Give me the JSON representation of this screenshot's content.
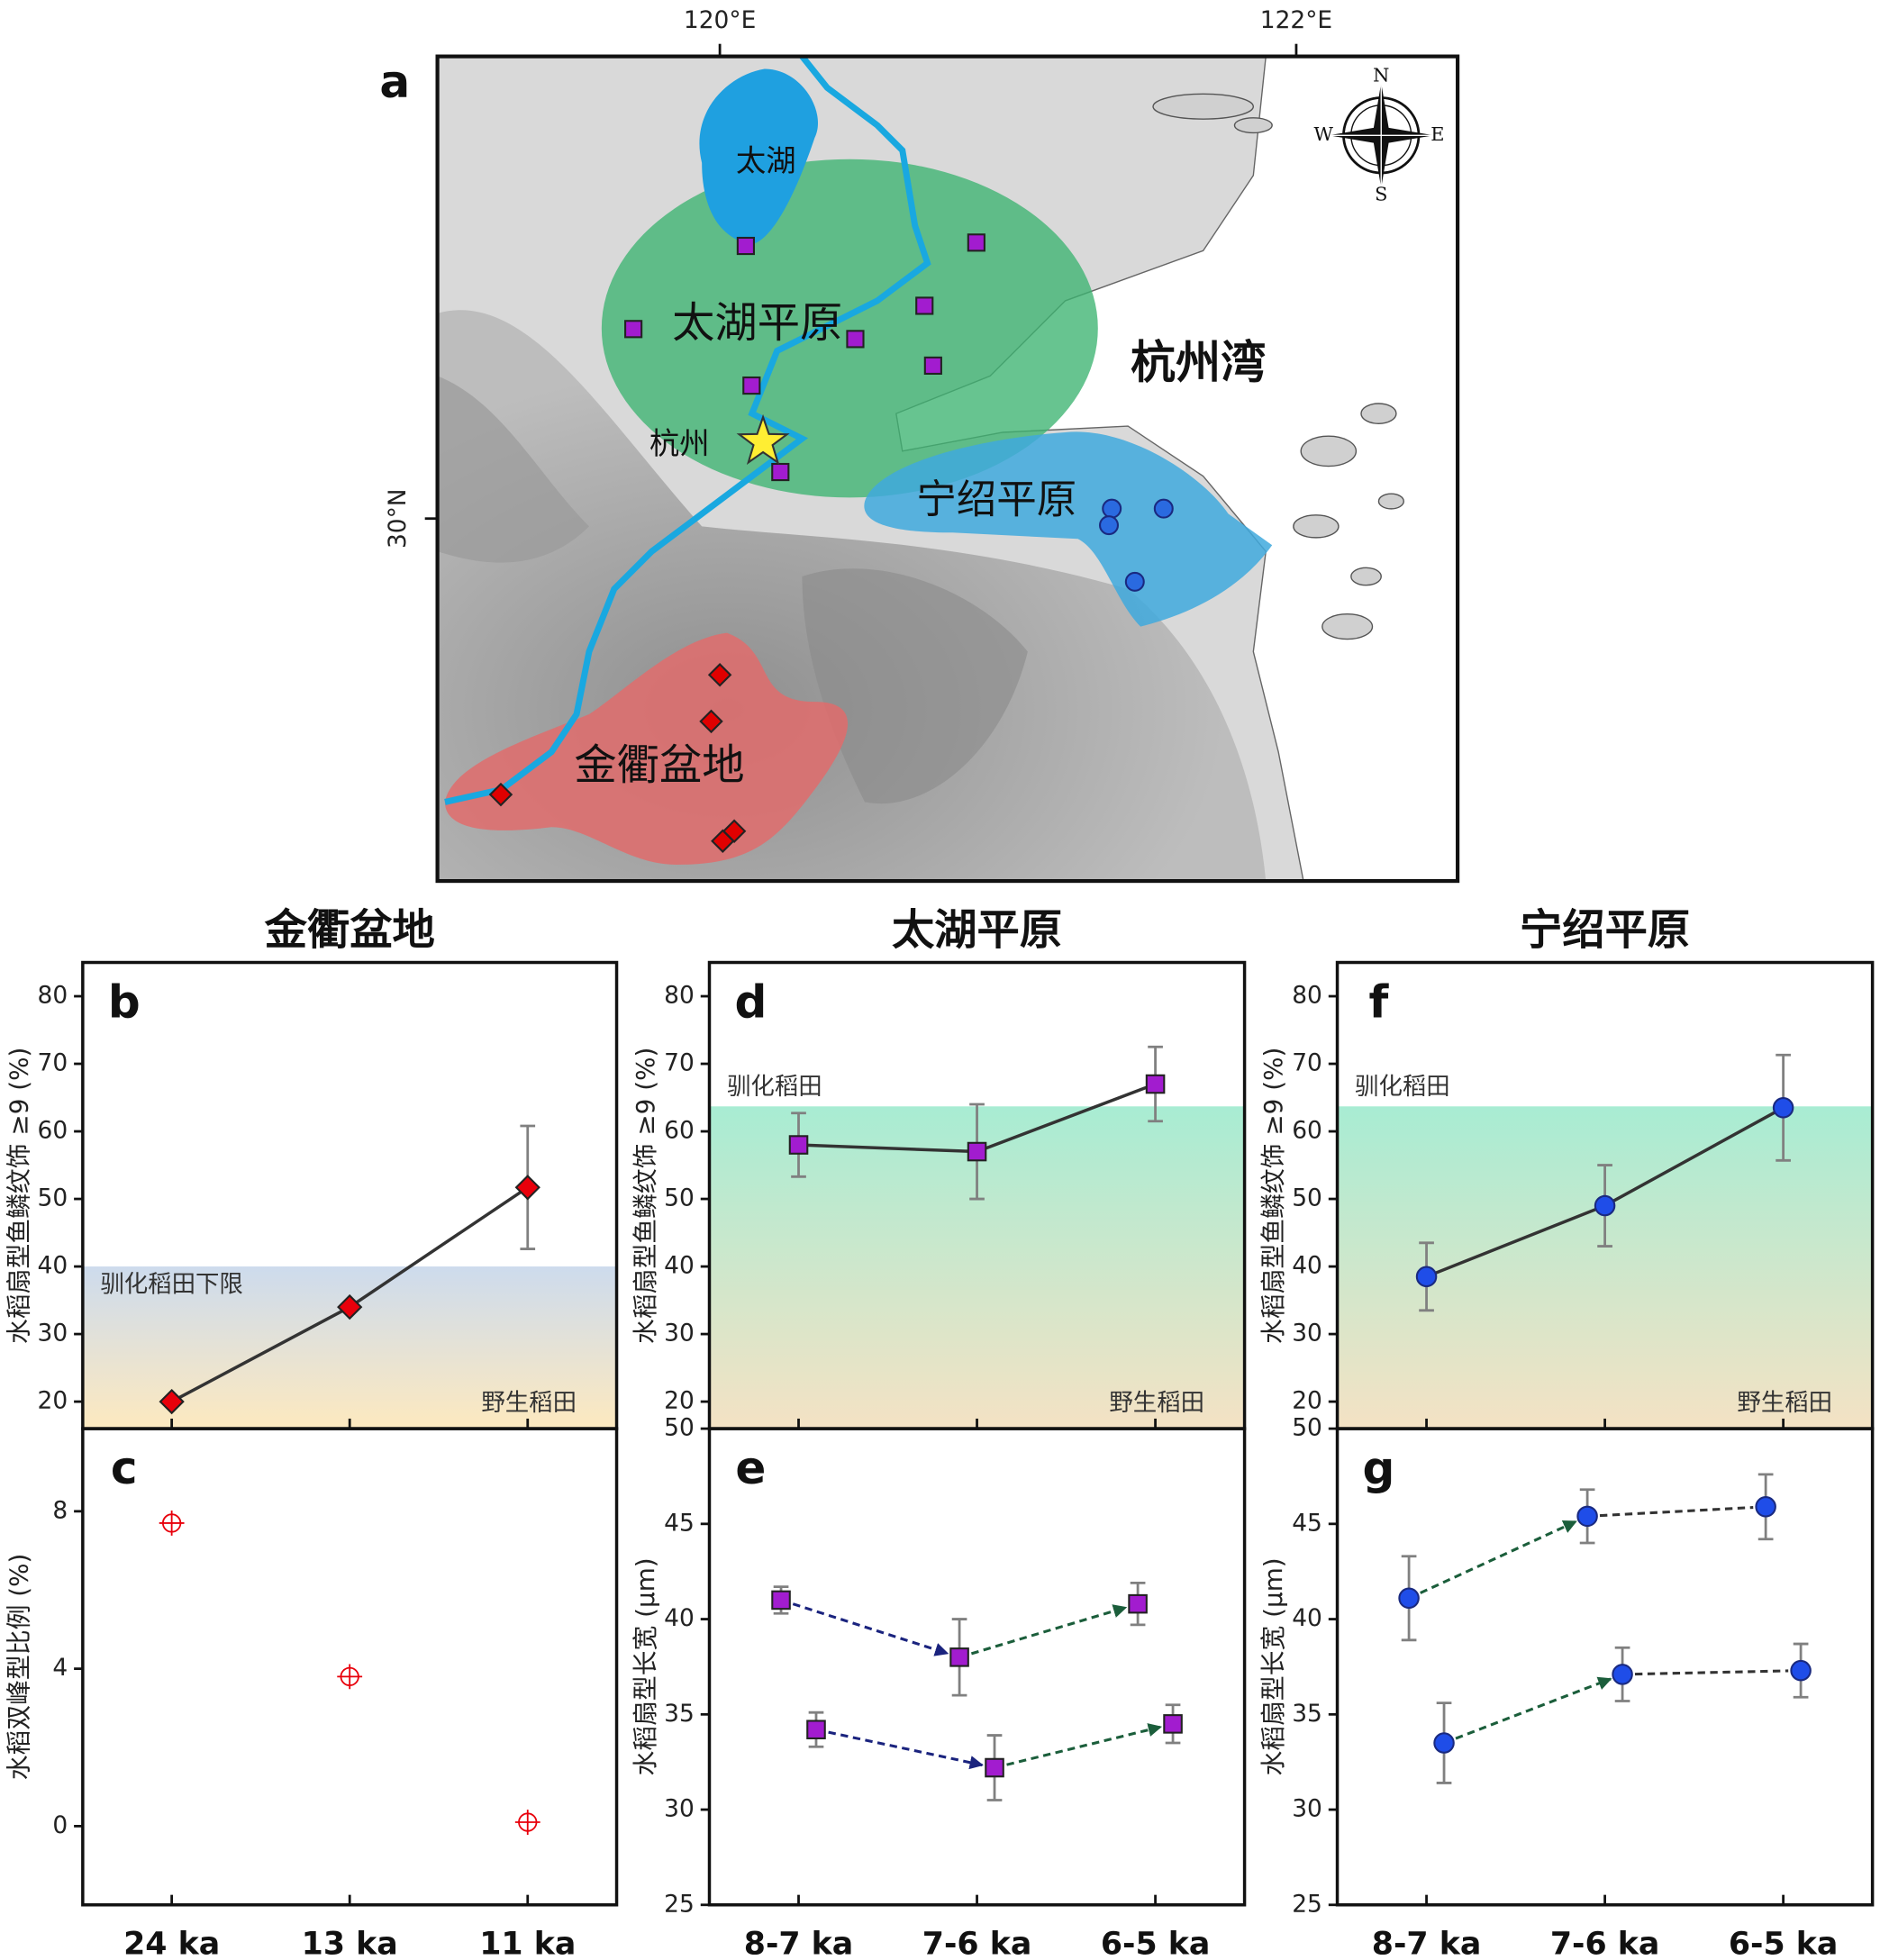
{
  "chart_data": [
    {
      "type": "map",
      "panel_label": "a",
      "xlim": [
        119.02,
        122.56
      ],
      "ylim": [
        28.91,
        31.39
      ],
      "xticks": [
        {
          "value": 120,
          "label": "120°E"
        },
        {
          "value": 122,
          "label": "122°E"
        }
      ],
      "yticks": [
        {
          "value": 30,
          "label": "30°N"
        }
      ],
      "compass": [
        "N",
        "E",
        "S",
        "W"
      ],
      "labels": [
        {
          "text": "太湖",
          "x": 120.16,
          "y": 31.07
        },
        {
          "text": "太湖平原",
          "x": 120.13,
          "y": 30.58
        },
        {
          "text": "杭州湾",
          "x": 121.66,
          "y": 30.46
        },
        {
          "text": "杭州",
          "x": 119.86,
          "y": 30.22
        },
        {
          "text": "宁绍平原",
          "x": 120.96,
          "y": 30.05
        },
        {
          "text": "金衢盆地",
          "x": 119.79,
          "y": 29.25
        }
      ],
      "series": [
        {
          "marker": "square",
          "color": "#a21ccf",
          "x": [
            120.09,
            120.89,
            119.7,
            120.71,
            120.47,
            120.74,
            120.11,
            120.21
          ],
          "y": [
            30.82,
            30.83,
            30.57,
            30.64,
            30.54,
            30.46,
            30.4,
            30.14
          ]
        },
        {
          "marker": "circle",
          "color": "#2a6ae0",
          "x": [
            121.36,
            121.54,
            121.35,
            121.44
          ],
          "y": [
            30.03,
            30.03,
            29.98,
            29.81
          ]
        },
        {
          "marker": "diamond",
          "color": "#e00000",
          "x": [
            120.0,
            119.97,
            119.24,
            120.05,
            120.01
          ],
          "y": [
            29.53,
            29.39,
            29.17,
            29.06,
            29.03
          ]
        }
      ],
      "star": {
        "x": 120.15,
        "y": 30.23,
        "color": "#ffee33"
      }
    },
    {
      "type": "line",
      "panel_label": "b",
      "title": "金衢盆地",
      "ylabel": "水稻扇型鱼鳞纹饰 ≥9 (%)",
      "ylim": [
        16,
        85
      ],
      "yticks": [
        20,
        30,
        40,
        50,
        60,
        70,
        80
      ],
      "values": [
        20,
        34,
        51.7
      ],
      "errors": [
        null,
        null,
        9.1
      ],
      "marker": "diamond",
      "color": "#e8000b",
      "line_color": "#333333",
      "threshold": 40,
      "band_colors": [
        "#cddbed",
        "#fde9bf"
      ],
      "domesticated_label": "驯化稻田下限",
      "wild_label": "野生稻田"
    },
    {
      "type": "dot",
      "panel_label": "c",
      "ylabel": "水稻双峰型比例 (%)",
      "categories": [
        "24 ka",
        "13 ka",
        "11 ka"
      ],
      "ylim": [
        -2,
        10.1
      ],
      "yticks": [
        0,
        4,
        8
      ],
      "values": [
        7.7,
        3.8,
        0.1
      ],
      "marker": "circle-plus",
      "color": "#e8000b"
    },
    {
      "type": "line",
      "panel_label": "d",
      "title": "太湖平原",
      "ylabel": "水稻扇型鱼鳞纹饰 ≥9 (%)",
      "ylim": [
        16,
        85
      ],
      "yticks": [
        20,
        30,
        40,
        50,
        60,
        70,
        80
      ],
      "values": [
        58,
        57,
        67
      ],
      "errors": [
        4.7,
        7,
        5.5
      ],
      "marker": "square",
      "color": "#a21ccf",
      "line_color": "#333333",
      "threshold": 63.7,
      "band_colors": [
        "#a8ecd3",
        "#f4e2c4"
      ],
      "domesticated_label": "驯化稻田",
      "wild_label": "野生稻田"
    },
    {
      "type": "dot-arrows",
      "panel_label": "e",
      "ylabel": "水稻扇型长宽 (µm)",
      "categories": [
        "8-7 ka",
        "7-6 ka",
        "6-5 ka"
      ],
      "ylim": [
        25,
        50
      ],
      "yticks": [
        25,
        30,
        35,
        40,
        45,
        50
      ],
      "series": [
        {
          "values": [
            41.0,
            38.0,
            40.8
          ],
          "errors": [
            0.7,
            2.0,
            1.1
          ]
        },
        {
          "values": [
            34.2,
            32.2,
            34.5
          ],
          "errors": [
            0.9,
            1.7,
            1.0
          ]
        }
      ],
      "marker": "square",
      "color": "#a21ccf",
      "connector_colors": [
        "#1a237e",
        "#1b5e3b"
      ],
      "connector_arrows": [
        true,
        true
      ]
    },
    {
      "type": "line",
      "panel_label": "f",
      "title": "宁绍平原",
      "ylabel": "水稻扇型鱼鳞纹饰 ≥9 (%)",
      "ylim": [
        16,
        85
      ],
      "yticks": [
        20,
        30,
        40,
        50,
        60,
        70,
        80
      ],
      "values": [
        38.5,
        49,
        63.5
      ],
      "errors": [
        5,
        6,
        7.8
      ],
      "marker": "circle",
      "color": "#1f4de8",
      "line_color": "#333333",
      "threshold": 63.7,
      "band_colors": [
        "#a8ecd3",
        "#f4e2c4"
      ],
      "domesticated_label": "驯化稻田",
      "wild_label": "野生稻田"
    },
    {
      "type": "dot-arrows",
      "panel_label": "g",
      "ylabel": "水稻扇型长宽 (µm)",
      "categories": [
        "8-7 ka",
        "7-6 ka",
        "6-5 ka"
      ],
      "ylim": [
        25,
        50
      ],
      "yticks": [
        25,
        30,
        35,
        40,
        45,
        50
      ],
      "series": [
        {
          "values": [
            41.1,
            45.4,
            45.9
          ],
          "errors": [
            2.2,
            1.4,
            1.7
          ]
        },
        {
          "values": [
            33.5,
            37.1,
            37.3
          ],
          "errors": [
            2.1,
            1.4,
            1.4
          ]
        }
      ],
      "marker": "circle",
      "color": "#1f4de8",
      "connector_colors": [
        "#1b5e3b",
        "#333333"
      ],
      "connector_arrows": [
        true,
        false
      ]
    }
  ]
}
